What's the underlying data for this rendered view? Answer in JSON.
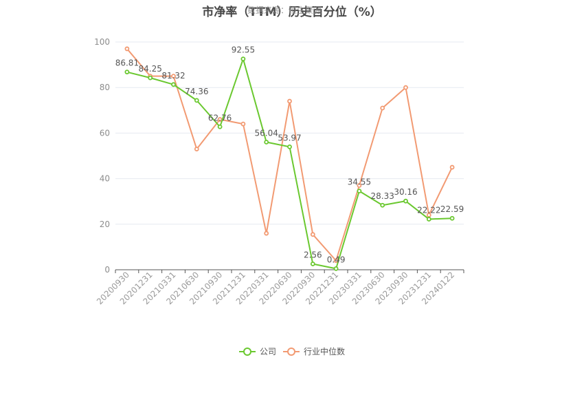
{
  "title": "市净率（TTM）历史百分位（%）",
  "watermark": "数据来源：恒生聚源",
  "legend": {
    "company": "公司",
    "industry": "行业中位数"
  },
  "colors": {
    "company": "#6ac82f",
    "industry": "#f29a72",
    "grid": "#e6e9f0",
    "axis": "#555555"
  },
  "chart_data": {
    "type": "line",
    "title": "市净率（TTM）历史百分位（%）",
    "categories": [
      "20200930",
      "20201231",
      "20210331",
      "20210630",
      "20210930",
      "20211231",
      "20220331",
      "20220630",
      "20220930",
      "20221231",
      "20230331",
      "20230630",
      "20230930",
      "20231231",
      "20240122"
    ],
    "ylim": [
      0,
      100
    ],
    "yticks": [
      0,
      20,
      40,
      60,
      80,
      100
    ],
    "grid": true,
    "legend_position": "bottom",
    "series": [
      {
        "name": "公司",
        "key": "company",
        "values": [
          86.81,
          84.25,
          81.32,
          74.36,
          62.76,
          92.55,
          56.04,
          53.97,
          2.56,
          0.49,
          34.55,
          28.33,
          30.16,
          22.22,
          22.59
        ],
        "labels": [
          "86.81",
          "84.25",
          "81.32",
          "74.36",
          "62.76",
          "92.55",
          "56.04",
          "53.97",
          "2.56",
          "0.49",
          "34.55",
          "28.33",
          "30.16",
          "22.22",
          "22.59"
        ]
      },
      {
        "name": "行业中位数",
        "key": "industry",
        "values": [
          97,
          85,
          85,
          53,
          66,
          64,
          16,
          74,
          15.5,
          4,
          37,
          71,
          80,
          24,
          45
        ]
      }
    ]
  }
}
